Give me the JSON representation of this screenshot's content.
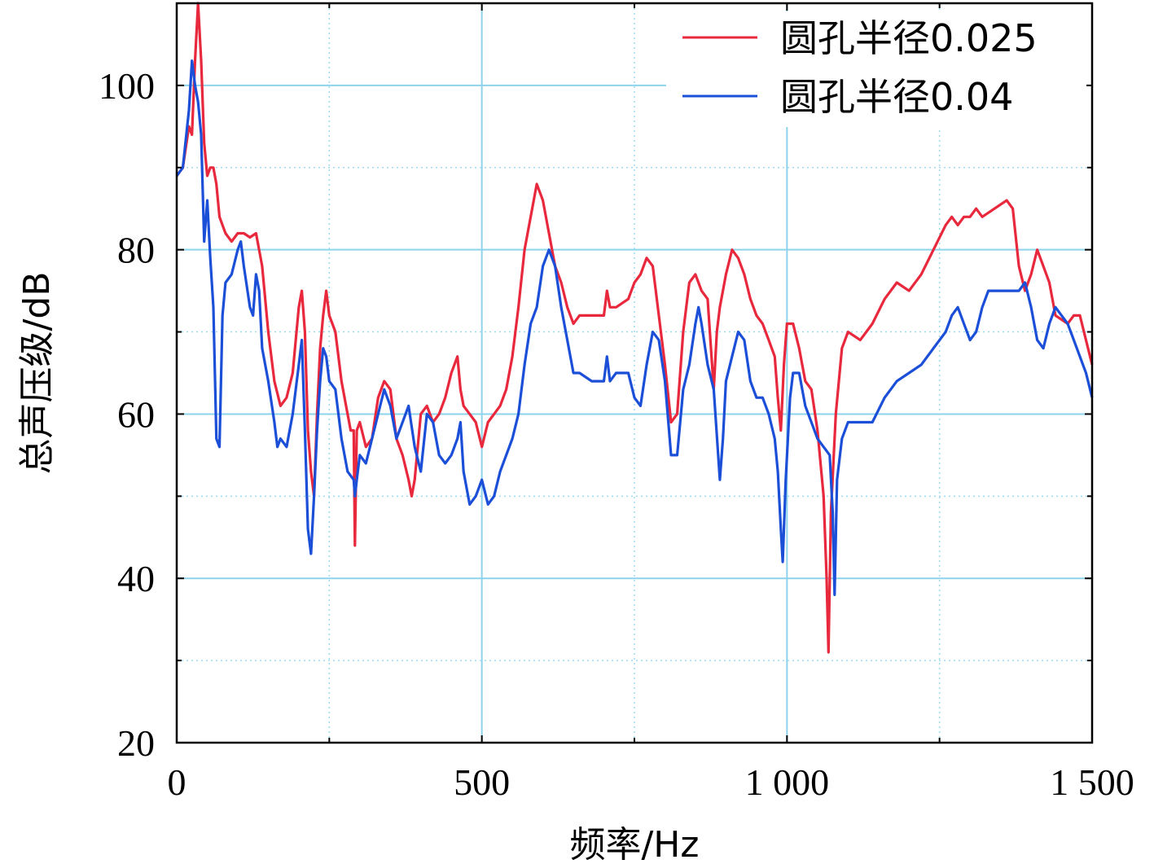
{
  "chart_data": {
    "type": "line",
    "xlabel": "频率/Hz",
    "ylabel": "总声压级/dB",
    "xlim": [
      0,
      1500
    ],
    "ylim": [
      20,
      110
    ],
    "x_ticks": [
      0,
      500,
      1000,
      1500
    ],
    "x_tick_labels": [
      "0",
      "500",
      "1 000",
      "1 500"
    ],
    "y_ticks": [
      20,
      40,
      60,
      80,
      100
    ],
    "y_tick_labels": [
      "20",
      "40",
      "60",
      "80",
      "100"
    ],
    "grid": true,
    "legend_position": "top-right",
    "series": [
      {
        "name": "圆孔半径0.025",
        "color": "#e8283c",
        "points": [
          [
            0,
            89
          ],
          [
            10,
            90
          ],
          [
            20,
            95
          ],
          [
            25,
            94
          ],
          [
            30,
            103
          ],
          [
            35,
            110
          ],
          [
            40,
            103
          ],
          [
            45,
            93
          ],
          [
            50,
            89
          ],
          [
            55,
            90
          ],
          [
            60,
            90
          ],
          [
            65,
            88
          ],
          [
            70,
            84
          ],
          [
            80,
            82
          ],
          [
            90,
            81
          ],
          [
            100,
            82
          ],
          [
            110,
            82
          ],
          [
            120,
            81.5
          ],
          [
            130,
            82
          ],
          [
            140,
            78
          ],
          [
            150,
            70
          ],
          [
            160,
            64
          ],
          [
            170,
            61
          ],
          [
            180,
            62
          ],
          [
            190,
            65
          ],
          [
            200,
            73
          ],
          [
            205,
            75
          ],
          [
            210,
            70
          ],
          [
            215,
            58
          ],
          [
            220,
            53
          ],
          [
            225,
            50
          ],
          [
            230,
            60
          ],
          [
            235,
            68
          ],
          [
            240,
            72
          ],
          [
            245,
            75
          ],
          [
            250,
            72
          ],
          [
            255,
            71
          ],
          [
            260,
            70
          ],
          [
            270,
            64
          ],
          [
            280,
            60
          ],
          [
            285,
            58
          ],
          [
            290,
            58
          ],
          [
            292,
            44
          ],
          [
            295,
            58
          ],
          [
            300,
            59
          ],
          [
            310,
            56
          ],
          [
            320,
            57
          ],
          [
            330,
            62
          ],
          [
            340,
            64
          ],
          [
            350,
            63
          ],
          [
            360,
            57
          ],
          [
            370,
            55
          ],
          [
            380,
            52
          ],
          [
            385,
            50
          ],
          [
            390,
            52
          ],
          [
            400,
            60
          ],
          [
            410,
            61
          ],
          [
            420,
            59
          ],
          [
            430,
            60
          ],
          [
            440,
            62
          ],
          [
            450,
            65
          ],
          [
            460,
            67
          ],
          [
            465,
            63
          ],
          [
            470,
            61
          ],
          [
            480,
            60
          ],
          [
            490,
            59
          ],
          [
            500,
            56
          ],
          [
            510,
            59
          ],
          [
            520,
            60
          ],
          [
            530,
            61
          ],
          [
            540,
            63
          ],
          [
            550,
            67
          ],
          [
            560,
            73
          ],
          [
            570,
            80
          ],
          [
            580,
            84
          ],
          [
            590,
            88
          ],
          [
            600,
            86
          ],
          [
            610,
            82
          ],
          [
            620,
            78
          ],
          [
            630,
            76
          ],
          [
            640,
            73
          ],
          [
            650,
            71
          ],
          [
            660,
            72
          ],
          [
            680,
            72
          ],
          [
            700,
            72
          ],
          [
            705,
            75
          ],
          [
            710,
            73
          ],
          [
            720,
            73
          ],
          [
            740,
            74
          ],
          [
            750,
            76
          ],
          [
            760,
            77
          ],
          [
            770,
            79
          ],
          [
            780,
            78
          ],
          [
            790,
            72
          ],
          [
            800,
            66
          ],
          [
            810,
            59
          ],
          [
            820,
            60
          ],
          [
            830,
            70
          ],
          [
            840,
            76
          ],
          [
            850,
            77
          ],
          [
            860,
            75
          ],
          [
            870,
            74
          ],
          [
            880,
            63
          ],
          [
            885,
            70
          ],
          [
            890,
            73
          ],
          [
            900,
            77
          ],
          [
            910,
            80
          ],
          [
            920,
            79
          ],
          [
            930,
            77
          ],
          [
            940,
            74
          ],
          [
            950,
            72
          ],
          [
            960,
            71
          ],
          [
            970,
            69
          ],
          [
            980,
            67
          ],
          [
            985,
            62
          ],
          [
            990,
            58
          ],
          [
            995,
            66
          ],
          [
            1000,
            71
          ],
          [
            1010,
            71
          ],
          [
            1020,
            68
          ],
          [
            1030,
            64
          ],
          [
            1040,
            63
          ],
          [
            1050,
            58
          ],
          [
            1060,
            50
          ],
          [
            1065,
            40
          ],
          [
            1068,
            31
          ],
          [
            1072,
            48
          ],
          [
            1080,
            60
          ],
          [
            1090,
            68
          ],
          [
            1100,
            70
          ],
          [
            1120,
            69
          ],
          [
            1140,
            71
          ],
          [
            1160,
            74
          ],
          [
            1180,
            76
          ],
          [
            1200,
            75
          ],
          [
            1220,
            77
          ],
          [
            1240,
            80
          ],
          [
            1260,
            83
          ],
          [
            1270,
            84
          ],
          [
            1280,
            83
          ],
          [
            1290,
            84
          ],
          [
            1300,
            84
          ],
          [
            1310,
            85
          ],
          [
            1320,
            84
          ],
          [
            1340,
            85
          ],
          [
            1360,
            86
          ],
          [
            1370,
            85
          ],
          [
            1380,
            78
          ],
          [
            1390,
            75
          ],
          [
            1400,
            77
          ],
          [
            1410,
            80
          ],
          [
            1420,
            78
          ],
          [
            1430,
            76
          ],
          [
            1440,
            72
          ],
          [
            1460,
            71
          ],
          [
            1470,
            72
          ],
          [
            1480,
            72
          ],
          [
            1490,
            69
          ],
          [
            1500,
            66
          ]
        ]
      },
      {
        "name": "圆孔半径0.04",
        "color": "#1c4fd8",
        "points": [
          [
            0,
            89
          ],
          [
            10,
            90
          ],
          [
            20,
            97
          ],
          [
            25,
            103
          ],
          [
            30,
            100
          ],
          [
            35,
            98
          ],
          [
            40,
            94
          ],
          [
            45,
            81
          ],
          [
            50,
            86
          ],
          [
            55,
            79
          ],
          [
            60,
            73
          ],
          [
            65,
            57
          ],
          [
            70,
            56
          ],
          [
            75,
            72
          ],
          [
            80,
            76
          ],
          [
            90,
            77
          ],
          [
            100,
            80
          ],
          [
            105,
            81
          ],
          [
            110,
            78
          ],
          [
            120,
            73
          ],
          [
            125,
            72
          ],
          [
            130,
            77
          ],
          [
            135,
            75
          ],
          [
            140,
            68
          ],
          [
            150,
            64
          ],
          [
            160,
            59
          ],
          [
            165,
            56
          ],
          [
            170,
            57
          ],
          [
            180,
            56
          ],
          [
            190,
            60
          ],
          [
            200,
            66
          ],
          [
            205,
            69
          ],
          [
            210,
            58
          ],
          [
            215,
            46
          ],
          [
            220,
            43
          ],
          [
            225,
            50
          ],
          [
            230,
            58
          ],
          [
            235,
            64
          ],
          [
            240,
            68
          ],
          [
            245,
            67
          ],
          [
            250,
            64
          ],
          [
            260,
            63
          ],
          [
            270,
            57
          ],
          [
            280,
            53
          ],
          [
            290,
            52
          ],
          [
            292,
            50
          ],
          [
            295,
            52
          ],
          [
            300,
            55
          ],
          [
            310,
            54
          ],
          [
            320,
            57
          ],
          [
            330,
            60
          ],
          [
            340,
            63
          ],
          [
            350,
            61
          ],
          [
            360,
            57
          ],
          [
            370,
            59
          ],
          [
            380,
            61
          ],
          [
            390,
            56
          ],
          [
            400,
            53
          ],
          [
            410,
            60
          ],
          [
            420,
            59
          ],
          [
            430,
            55
          ],
          [
            440,
            54
          ],
          [
            450,
            55
          ],
          [
            460,
            57
          ],
          [
            465,
            59
          ],
          [
            470,
            53
          ],
          [
            480,
            49
          ],
          [
            490,
            50
          ],
          [
            500,
            52
          ],
          [
            510,
            49
          ],
          [
            520,
            50
          ],
          [
            530,
            53
          ],
          [
            540,
            55
          ],
          [
            550,
            57
          ],
          [
            560,
            60
          ],
          [
            570,
            66
          ],
          [
            580,
            71
          ],
          [
            590,
            73
          ],
          [
            600,
            78
          ],
          [
            610,
            80
          ],
          [
            620,
            78
          ],
          [
            630,
            73
          ],
          [
            640,
            69
          ],
          [
            650,
            65
          ],
          [
            660,
            65
          ],
          [
            680,
            64
          ],
          [
            700,
            64
          ],
          [
            705,
            67
          ],
          [
            710,
            64
          ],
          [
            720,
            65
          ],
          [
            740,
            65
          ],
          [
            750,
            62
          ],
          [
            760,
            61
          ],
          [
            770,
            66
          ],
          [
            780,
            70
          ],
          [
            790,
            69
          ],
          [
            800,
            64
          ],
          [
            810,
            55
          ],
          [
            820,
            55
          ],
          [
            830,
            63
          ],
          [
            840,
            66
          ],
          [
            850,
            71
          ],
          [
            855,
            73
          ],
          [
            860,
            71
          ],
          [
            870,
            66
          ],
          [
            880,
            63
          ],
          [
            890,
            52
          ],
          [
            895,
            57
          ],
          [
            900,
            64
          ],
          [
            910,
            67
          ],
          [
            920,
            70
          ],
          [
            930,
            69
          ],
          [
            940,
            64
          ],
          [
            950,
            62
          ],
          [
            960,
            62
          ],
          [
            970,
            60
          ],
          [
            980,
            57
          ],
          [
            985,
            53
          ],
          [
            990,
            46
          ],
          [
            993,
            42
          ],
          [
            998,
            52
          ],
          [
            1005,
            62
          ],
          [
            1010,
            65
          ],
          [
            1020,
            65
          ],
          [
            1030,
            61
          ],
          [
            1040,
            59
          ],
          [
            1050,
            57
          ],
          [
            1060,
            56
          ],
          [
            1070,
            55
          ],
          [
            1075,
            48
          ],
          [
            1078,
            38
          ],
          [
            1082,
            52
          ],
          [
            1090,
            57
          ],
          [
            1100,
            59
          ],
          [
            1120,
            59
          ],
          [
            1140,
            59
          ],
          [
            1160,
            62
          ],
          [
            1180,
            64
          ],
          [
            1200,
            65
          ],
          [
            1220,
            66
          ],
          [
            1240,
            68
          ],
          [
            1260,
            70
          ],
          [
            1270,
            72
          ],
          [
            1280,
            73
          ],
          [
            1290,
            71
          ],
          [
            1300,
            69
          ],
          [
            1310,
            70
          ],
          [
            1320,
            73
          ],
          [
            1330,
            75
          ],
          [
            1340,
            75
          ],
          [
            1360,
            75
          ],
          [
            1370,
            75
          ],
          [
            1380,
            75
          ],
          [
            1390,
            76
          ],
          [
            1400,
            73
          ],
          [
            1410,
            69
          ],
          [
            1420,
            68
          ],
          [
            1430,
            71
          ],
          [
            1440,
            73
          ],
          [
            1450,
            72
          ],
          [
            1460,
            71
          ],
          [
            1470,
            69
          ],
          [
            1480,
            67
          ],
          [
            1490,
            65
          ],
          [
            1500,
            62
          ]
        ]
      }
    ]
  }
}
